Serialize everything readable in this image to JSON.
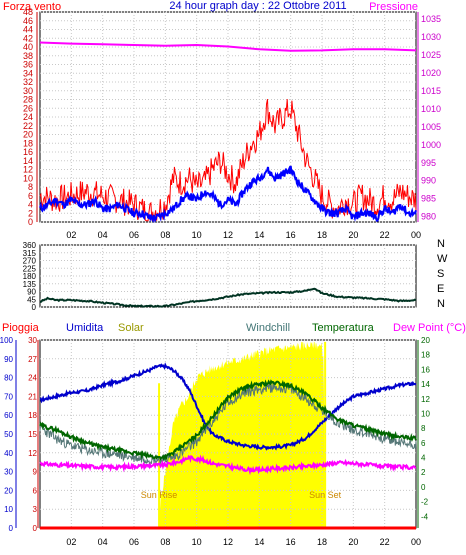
{
  "header": {
    "left": "Forza vento",
    "center": "24 hour graph day : 22 Ottobre 2011",
    "right": "Pressione"
  },
  "panel3_headers": {
    "pioggia": "Pioggia",
    "umidita": "Umidita",
    "solar": "Solar",
    "windchill": "Windchill",
    "temperatura": "Temperatura",
    "dewpoint": "Dew Point (°C)"
  },
  "x_ticks": [
    "02",
    "04",
    "06",
    "08",
    "10",
    "12",
    "14",
    "16",
    "18",
    "20",
    "22",
    "00"
  ],
  "sun": {
    "rise_label": "Sun Rise",
    "set_label": "Sun Set",
    "rise_hour": 7.6,
    "set_hour": 18.2
  },
  "colors": {
    "wind_gust": "#ff0000",
    "wind_avg": "#0000ff",
    "pressure": "#ff00ff",
    "direction": "#003322",
    "humidity": "#0000cc",
    "solar": "#ffff00",
    "windchill": "#557777",
    "temperature": "#006600",
    "dewpoint": "#ff00ff",
    "rain": "#ff0000",
    "sun_label": "#cc8800"
  },
  "chart_data": [
    {
      "type": "line",
      "name": "wind-pressure",
      "x_unit": "hour",
      "xlim": [
        0,
        24
      ],
      "left_axis": {
        "label": "Forza vento",
        "ticks": [
          0,
          2,
          4,
          6,
          8,
          10,
          12,
          14,
          16,
          18,
          20,
          22,
          24,
          26,
          28,
          30,
          32,
          34,
          36,
          38,
          40,
          42,
          44,
          46,
          48
        ],
        "ylim": [
          0,
          48
        ]
      },
      "right_axis": {
        "label": "Pressione",
        "ticks": [
          980,
          985,
          990,
          995,
          1000,
          1005,
          1010,
          1015,
          1020,
          1025,
          1030,
          1035
        ],
        "ylim": [
          978.5,
          1037
        ]
      },
      "series": [
        {
          "key": "gust",
          "axis": "left",
          "x": [
            0,
            1,
            2,
            3,
            4,
            5,
            6,
            7,
            8,
            8.5,
            9,
            9.5,
            10,
            10.5,
            11,
            11.5,
            12,
            12.5,
            13,
            13.5,
            14,
            14.5,
            15,
            15.5,
            16,
            16.5,
            17,
            17.5,
            18,
            18.5,
            19,
            19.5,
            20,
            20.5,
            21,
            21.5,
            22,
            22.5,
            23,
            23.5,
            24
          ],
          "values": [
            6,
            5,
            6,
            7,
            6,
            5,
            4,
            2,
            4,
            10,
            9,
            10,
            8,
            9,
            12,
            14,
            11,
            9,
            14,
            18,
            20,
            26,
            22,
            24,
            26,
            20,
            14,
            10,
            6,
            4,
            3,
            5,
            4,
            6,
            5,
            4,
            6,
            5,
            7,
            6,
            5
          ]
        },
        {
          "key": "avg",
          "axis": "left",
          "x": [
            0,
            0.5,
            1,
            1.5,
            2,
            2.5,
            3,
            3.5,
            4,
            4.5,
            5,
            5.5,
            6,
            6.5,
            7,
            7.5,
            8,
            8.5,
            9,
            9.5,
            10,
            10.5,
            11,
            11.5,
            12,
            12.5,
            13,
            13.5,
            14,
            14.5,
            15,
            15.5,
            16,
            16.5,
            17,
            17.5,
            18,
            18.5,
            19,
            19.5,
            20,
            20.5,
            21,
            21.5,
            22,
            22.5,
            23,
            23.5,
            24
          ],
          "values": [
            3,
            4,
            5,
            4,
            5,
            4,
            4,
            5,
            3,
            3,
            4,
            3,
            2,
            2,
            1,
            1,
            2,
            3,
            5,
            6,
            5,
            7,
            6,
            4,
            5,
            4,
            7,
            9,
            10,
            12,
            10,
            11,
            12,
            9,
            7,
            5,
            3,
            2,
            2,
            3,
            1,
            2,
            2,
            1,
            3,
            2,
            4,
            2,
            2
          ]
        },
        {
          "key": "pressure",
          "axis": "right",
          "x": [
            0,
            2,
            4,
            6,
            8,
            10,
            12,
            14,
            16,
            18,
            20,
            22,
            24
          ],
          "values": [
            1028.5,
            1028.2,
            1028.0,
            1027.8,
            1027.6,
            1027.8,
            1027.4,
            1026.6,
            1026.2,
            1026.3,
            1026.6,
            1026.6,
            1026.3
          ]
        }
      ]
    },
    {
      "type": "line",
      "name": "wind-direction",
      "x_unit": "hour",
      "xlim": [
        0,
        24
      ],
      "left_axis": {
        "ticks": [
          0,
          45,
          90,
          135,
          180,
          225,
          270,
          315,
          360
        ],
        "ylim": [
          0,
          360
        ]
      },
      "right_axis": {
        "labels": [
          "N",
          "W",
          "S",
          "E",
          "N"
        ]
      },
      "series": [
        {
          "key": "direction",
          "x": [
            0,
            0.5,
            1,
            2,
            3,
            4,
            5,
            6,
            7,
            8,
            9,
            10,
            11,
            12,
            13,
            14,
            15,
            16,
            17,
            17.5,
            18,
            19,
            20,
            21,
            22,
            23,
            24
          ],
          "values": [
            30,
            50,
            40,
            40,
            35,
            25,
            15,
            5,
            5,
            5,
            20,
            35,
            45,
            60,
            75,
            80,
            85,
            85,
            95,
            110,
            80,
            60,
            55,
            50,
            45,
            35,
            40
          ]
        }
      ]
    },
    {
      "type": "area",
      "name": "humidity-temperature",
      "x_unit": "hour",
      "xlim": [
        0,
        24
      ],
      "axes": {
        "rain": {
          "label": "Pioggia",
          "ticks": [
            0,
            10,
            20,
            30,
            40,
            50,
            60,
            70,
            80,
            90,
            100
          ],
          "ylim": [
            0,
            100
          ]
        },
        "humidity": {
          "label": "Umidita",
          "ticks": [
            0,
            3,
            6,
            9,
            12,
            15,
            18,
            21,
            24,
            27,
            30
          ],
          "ylim": [
            0,
            30
          ]
        },
        "temp": {
          "label": "Temperatura",
          "ticks": [
            -4,
            -2,
            0,
            2,
            4,
            6,
            8,
            10,
            12,
            14,
            16,
            18,
            20
          ],
          "ylim": [
            -5.6,
            20
          ]
        }
      },
      "series": [
        {
          "key": "humidity",
          "axis": "rain",
          "x": [
            0,
            1,
            2,
            3,
            4,
            5,
            6,
            7,
            7.5,
            8,
            8.5,
            9,
            9.5,
            10,
            10.5,
            11,
            12,
            13,
            14,
            15,
            16,
            17,
            18,
            19,
            20,
            21,
            22,
            23,
            24
          ],
          "values": [
            68,
            70,
            72,
            73,
            76,
            78,
            81,
            84,
            86,
            86,
            84,
            80,
            74,
            65,
            56,
            50,
            46,
            44,
            43,
            43,
            44,
            48,
            56,
            64,
            70,
            72,
            74,
            76,
            77
          ]
        },
        {
          "key": "solar",
          "axis": "rain",
          "x": [
            7.6,
            7.7,
            8,
            8.5,
            9,
            9.5,
            10,
            11,
            12,
            13,
            14,
            15,
            16,
            17,
            17.5,
            18,
            18.1,
            18.2
          ],
          "values": [
            0,
            15,
            30,
            55,
            65,
            70,
            80,
            85,
            88,
            90,
            93,
            95,
            96,
            97,
            98,
            96,
            90,
            0
          ]
        },
        {
          "key": "temperature",
          "axis": "temp",
          "x": [
            0,
            1,
            2,
            3,
            4,
            5,
            6,
            7,
            7.5,
            8,
            8.5,
            9,
            10,
            11,
            12,
            13,
            14,
            15,
            16,
            17,
            18,
            19,
            20,
            21,
            22,
            23,
            24
          ],
          "values": [
            8.4,
            7.8,
            6.8,
            6.0,
            5.4,
            5.0,
            4.6,
            4.2,
            4.0,
            4.1,
            4.6,
            5.4,
            7.0,
            9.5,
            12.2,
            13.5,
            14.0,
            14.2,
            13.8,
            12.6,
            10.8,
            9.2,
            8.4,
            7.8,
            7.2,
            6.8,
            6.6
          ]
        },
        {
          "key": "windchill",
          "axis": "temp",
          "x": [
            0,
            1,
            2,
            3,
            4,
            5,
            6,
            7,
            7.5,
            8,
            8.5,
            9,
            10,
            11,
            12,
            13,
            14,
            15,
            16,
            17,
            18,
            19,
            20,
            21,
            22,
            23,
            24
          ],
          "values": [
            8.1,
            6.6,
            5.6,
            5.0,
            4.6,
            4.4,
            4.0,
            3.8,
            3.7,
            3.7,
            4.0,
            4.6,
            6.2,
            8.8,
            11.5,
            12.8,
            13.3,
            13.6,
            13.3,
            12.0,
            10.3,
            8.8,
            7.8,
            7.2,
            6.6,
            6.0,
            5.8
          ]
        },
        {
          "key": "dewpoint",
          "axis": "temp",
          "x": [
            0,
            1,
            2,
            3,
            4,
            5,
            6,
            7,
            8,
            9,
            9.5,
            10,
            10.5,
            11,
            12,
            13,
            14,
            15,
            16,
            17,
            18,
            19,
            20,
            21,
            22,
            23,
            24
          ],
          "values": [
            3.2,
            3.0,
            2.9,
            2.8,
            2.7,
            2.7,
            2.8,
            2.9,
            3.0,
            3.5,
            4.0,
            3.8,
            3.6,
            3.2,
            2.8,
            2.4,
            2.3,
            2.5,
            2.6,
            2.8,
            3.0,
            3.3,
            3.2,
            3.0,
            2.8,
            2.7,
            2.6
          ]
        },
        {
          "key": "rain",
          "axis": "rain",
          "x": [
            0,
            24
          ],
          "values": [
            0,
            0
          ]
        }
      ]
    }
  ]
}
